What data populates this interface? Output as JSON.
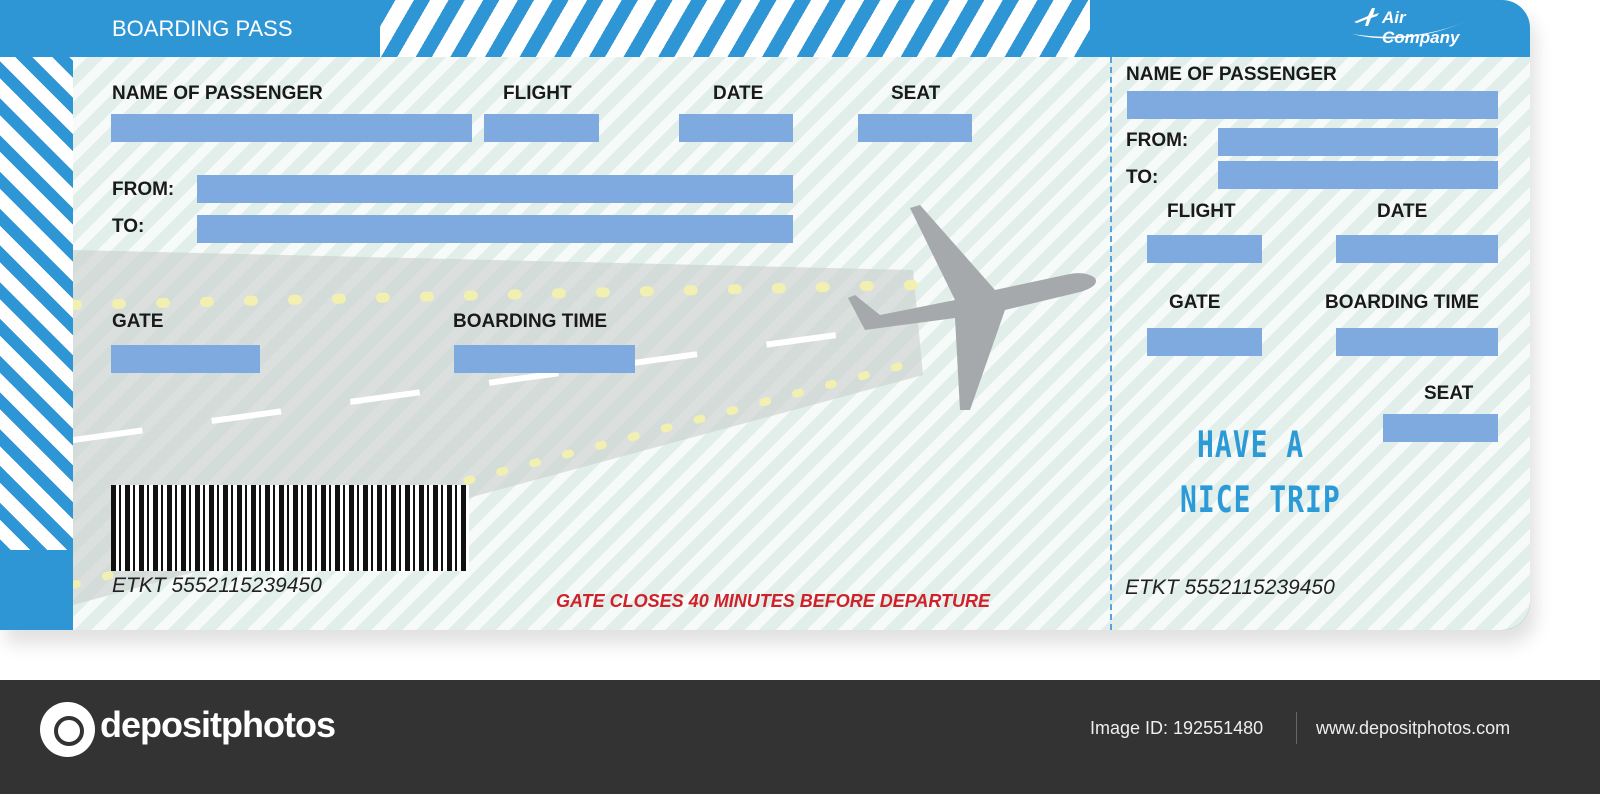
{
  "header": {
    "title": "BOARDING PASS",
    "brand": "Air Company",
    "brand_icon": "airplane-icon"
  },
  "main": {
    "labels": {
      "passenger": "NAME OF PASSENGER",
      "flight": "FLIGHT",
      "date": "DATE",
      "seat": "SEAT",
      "from": "FROM:",
      "to": "TO:",
      "gate": "GATE",
      "boarding_time": "BOARDING TIME"
    },
    "etkt": "ETKT 5552115239450",
    "notice": "GATE CLOSES 40 MINUTES BEFORE DEPARTURE"
  },
  "stub": {
    "labels": {
      "passenger": "NAME OF PASSENGER",
      "from": "FROM:",
      "to": "TO:",
      "flight": "FLIGHT",
      "date": "DATE",
      "gate": "GATE",
      "boarding_time": "BOARDING TIME",
      "seat": "SEAT"
    },
    "greeting_line1": "HAVE A",
    "greeting_line2": "NICE TRIP",
    "etkt": "ETKT 5552115239450"
  },
  "footer": {
    "logo": "depositphotos",
    "image_id": "Image ID: 192551480",
    "site": "www.depositphotos.com"
  },
  "colors": {
    "accent": "#2f96d6",
    "field": "#7eaadf",
    "notice": "#d0202a",
    "footer_bg": "#333333"
  }
}
